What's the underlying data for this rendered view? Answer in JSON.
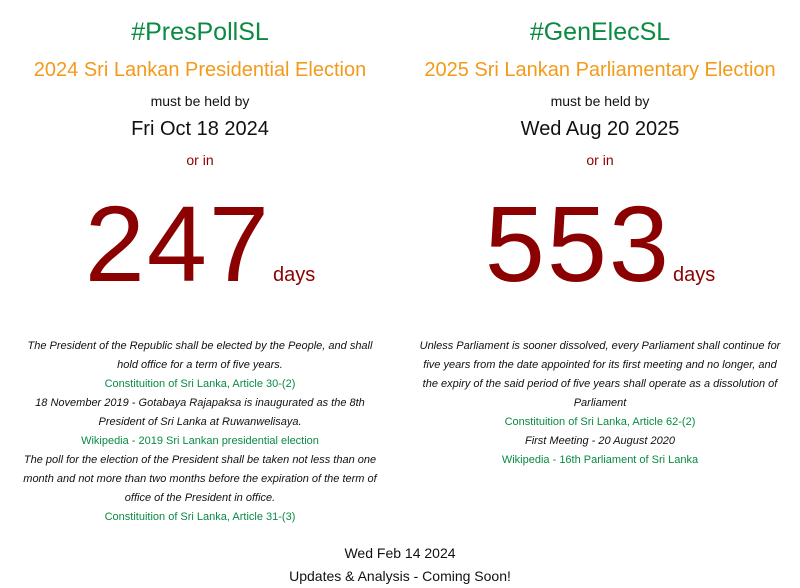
{
  "presidential": {
    "hashtag": "#PresPollSL",
    "title": "2024 Sri Lankan Presidential Election",
    "held_by_label": "must be held by",
    "deadline": "Fri Oct 18 2024",
    "or_in_label": "or in",
    "days_remaining": "247",
    "days_unit": "days",
    "notes": [
      {
        "type": "quote",
        "text": "The President of the Republic shall be elected by the People, and shall hold office for a term of five years."
      },
      {
        "type": "link",
        "text": "Constituition of Sri Lanka, Article 30-(2)"
      },
      {
        "type": "quote",
        "text": "18 November 2019 - Gotabaya Rajapaksa is inaugurated as the 8th President of Sri Lanka at Ruwanwelisaya."
      },
      {
        "type": "link",
        "text": "Wikipedia - 2019 Sri Lankan presidential election"
      },
      {
        "type": "quote",
        "text": "The poll for the election of the President shall be taken not less than one month and not more than two months before the expiration of the term of office of the President in office."
      },
      {
        "type": "link",
        "text": "Constituition of Sri Lanka, Article 31-(3)"
      }
    ]
  },
  "parliamentary": {
    "hashtag": "#GenElecSL",
    "title": "2025 Sri Lankan Parliamentary Election",
    "held_by_label": "must be held by",
    "deadline": "Wed Aug 20 2025",
    "or_in_label": "or in",
    "days_remaining": "553",
    "days_unit": "days",
    "notes": [
      {
        "type": "quote",
        "text": "Unless Parliament is sooner dissolved, every Parliament shall continue for five years from the date appointed for its first meeting and no longer, and the expiry of the said period of five years shall operate as a dissolution of Parliament"
      },
      {
        "type": "link",
        "text": "Constituition of Sri Lanka, Article 62-(2)"
      },
      {
        "type": "quote",
        "text": "First Meeting - 20 August 2020"
      },
      {
        "type": "link",
        "text": "Wikipedia - 16th Parliament of Sri Lanka"
      }
    ]
  },
  "footer": {
    "date": "Wed Feb 14 2024",
    "message": "Updates & Analysis - Coming Soon!"
  },
  "colors": {
    "hashtag": "#0a8a43",
    "title": "#f39a1a",
    "countdown": "#8b0000",
    "link": "#0a8a43"
  }
}
